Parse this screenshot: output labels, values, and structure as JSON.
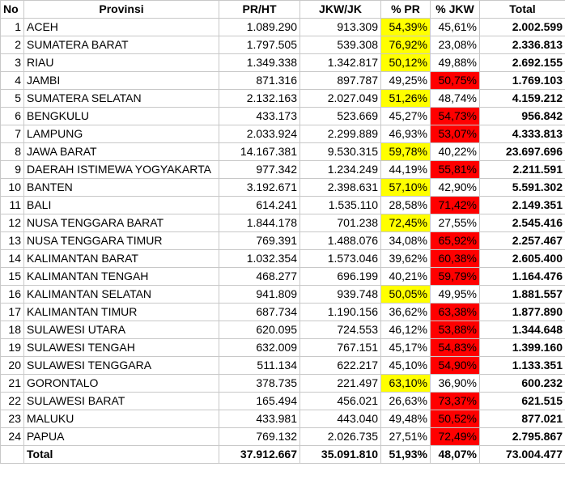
{
  "colors": {
    "yellow": "#ffff00",
    "red": "#ff0000"
  },
  "headers": {
    "no": "No",
    "provinsi": "Provinsi",
    "prht": "PR/HT",
    "jkwjk": "JKW/JK",
    "pct_pr": "% PR",
    "pct_jkw": "% JKW",
    "total": "Total"
  },
  "rows": [
    {
      "no": "1",
      "provinsi": "ACEH",
      "prht": "1.089.290",
      "jkwjk": "913.309",
      "pct_pr": "54,39%",
      "pct_jkw": "45,61%",
      "total": "2.002.599",
      "winner": "pr"
    },
    {
      "no": "2",
      "provinsi": "SUMATERA BARAT",
      "prht": "1.797.505",
      "jkwjk": "539.308",
      "pct_pr": "76,92%",
      "pct_jkw": "23,08%",
      "total": "2.336.813",
      "winner": "pr"
    },
    {
      "no": "3",
      "provinsi": "RIAU",
      "prht": "1.349.338",
      "jkwjk": "1.342.817",
      "pct_pr": "50,12%",
      "pct_jkw": "49,88%",
      "total": "2.692.155",
      "winner": "pr"
    },
    {
      "no": "4",
      "provinsi": "JAMBI",
      "prht": "871.316",
      "jkwjk": "897.787",
      "pct_pr": "49,25%",
      "pct_jkw": "50,75%",
      "total": "1.769.103",
      "winner": "jkw"
    },
    {
      "no": "5",
      "provinsi": "SUMATERA SELATAN",
      "prht": "2.132.163",
      "jkwjk": "2.027.049",
      "pct_pr": "51,26%",
      "pct_jkw": "48,74%",
      "total": "4.159.212",
      "winner": "pr"
    },
    {
      "no": "6",
      "provinsi": "BENGKULU",
      "prht": "433.173",
      "jkwjk": "523.669",
      "pct_pr": "45,27%",
      "pct_jkw": "54,73%",
      "total": "956.842",
      "winner": "jkw"
    },
    {
      "no": "7",
      "provinsi": "LAMPUNG",
      "prht": "2.033.924",
      "jkwjk": "2.299.889",
      "pct_pr": "46,93%",
      "pct_jkw": "53,07%",
      "total": "4.333.813",
      "winner": "jkw"
    },
    {
      "no": "8",
      "provinsi": "JAWA BARAT",
      "prht": "14.167.381",
      "jkwjk": "9.530.315",
      "pct_pr": "59,78%",
      "pct_jkw": "40,22%",
      "total": "23.697.696",
      "winner": "pr"
    },
    {
      "no": "9",
      "provinsi": "DAERAH ISTIMEWA YOGYAKARTA",
      "prht": "977.342",
      "jkwjk": "1.234.249",
      "pct_pr": "44,19%",
      "pct_jkw": "55,81%",
      "total": "2.211.591",
      "winner": "jkw"
    },
    {
      "no": "10",
      "provinsi": "BANTEN",
      "prht": "3.192.671",
      "jkwjk": "2.398.631",
      "pct_pr": "57,10%",
      "pct_jkw": "42,90%",
      "total": "5.591.302",
      "winner": "pr"
    },
    {
      "no": "11",
      "provinsi": "BALI",
      "prht": "614.241",
      "jkwjk": "1.535.110",
      "pct_pr": "28,58%",
      "pct_jkw": "71,42%",
      "total": "2.149.351",
      "winner": "jkw"
    },
    {
      "no": "12",
      "provinsi": "NUSA TENGGARA BARAT",
      "prht": "1.844.178",
      "jkwjk": "701.238",
      "pct_pr": "72,45%",
      "pct_jkw": "27,55%",
      "total": "2.545.416",
      "winner": "pr"
    },
    {
      "no": "13",
      "provinsi": "NUSA TENGGARA TIMUR",
      "prht": "769.391",
      "jkwjk": "1.488.076",
      "pct_pr": "34,08%",
      "pct_jkw": "65,92%",
      "total": "2.257.467",
      "winner": "jkw"
    },
    {
      "no": "14",
      "provinsi": "KALIMANTAN BARAT",
      "prht": "1.032.354",
      "jkwjk": "1.573.046",
      "pct_pr": "39,62%",
      "pct_jkw": "60,38%",
      "total": "2.605.400",
      "winner": "jkw"
    },
    {
      "no": "15",
      "provinsi": "KALIMANTAN TENGAH",
      "prht": "468.277",
      "jkwjk": "696.199",
      "pct_pr": "40,21%",
      "pct_jkw": "59,79%",
      "total": "1.164.476",
      "winner": "jkw"
    },
    {
      "no": "16",
      "provinsi": "KALIMANTAN SELATAN",
      "prht": "941.809",
      "jkwjk": "939.748",
      "pct_pr": "50,05%",
      "pct_jkw": "49,95%",
      "total": "1.881.557",
      "winner": "pr"
    },
    {
      "no": "17",
      "provinsi": "KALIMANTAN TIMUR",
      "prht": "687.734",
      "jkwjk": "1.190.156",
      "pct_pr": "36,62%",
      "pct_jkw": "63,38%",
      "total": "1.877.890",
      "winner": "jkw"
    },
    {
      "no": "18",
      "provinsi": "SULAWESI UTARA",
      "prht": "620.095",
      "jkwjk": "724.553",
      "pct_pr": "46,12%",
      "pct_jkw": "53,88%",
      "total": "1.344.648",
      "winner": "jkw"
    },
    {
      "no": "19",
      "provinsi": "SULAWESI TENGAH",
      "prht": "632.009",
      "jkwjk": "767.151",
      "pct_pr": "45,17%",
      "pct_jkw": "54,83%",
      "total": "1.399.160",
      "winner": "jkw"
    },
    {
      "no": "20",
      "provinsi": "SULAWESI TENGGARA",
      "prht": "511.134",
      "jkwjk": "622.217",
      "pct_pr": "45,10%",
      "pct_jkw": "54,90%",
      "total": "1.133.351",
      "winner": "jkw"
    },
    {
      "no": "21",
      "provinsi": "GORONTALO",
      "prht": "378.735",
      "jkwjk": "221.497",
      "pct_pr": "63,10%",
      "pct_jkw": "36,90%",
      "total": "600.232",
      "winner": "pr"
    },
    {
      "no": "22",
      "provinsi": "SULAWESI BARAT",
      "prht": "165.494",
      "jkwjk": "456.021",
      "pct_pr": "26,63%",
      "pct_jkw": "73,37%",
      "total": "621.515",
      "winner": "jkw"
    },
    {
      "no": "23",
      "provinsi": "MALUKU",
      "prht": "433.981",
      "jkwjk": "443.040",
      "pct_pr": "49,48%",
      "pct_jkw": "50,52%",
      "total": "877.021",
      "winner": "jkw"
    },
    {
      "no": "24",
      "provinsi": "PAPUA",
      "prht": "769.132",
      "jkwjk": "2.026.735",
      "pct_pr": "27,51%",
      "pct_jkw": "72,49%",
      "total": "2.795.867",
      "winner": "jkw"
    }
  ],
  "total_row": {
    "label": "Total",
    "prht": "37.912.667",
    "jkwjk": "35.091.810",
    "pct_pr": "51,93%",
    "pct_jkw": "48,07%",
    "total": "73.004.477"
  }
}
